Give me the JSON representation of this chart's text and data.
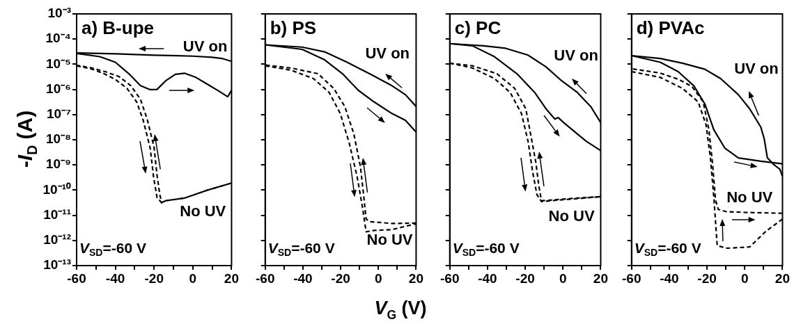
{
  "chart_data": [
    {
      "type": "line",
      "title": "a) B-upe",
      "ylabel": "-I$_{D}$ (A)",
      "log": "y",
      "marker": "none",
      "xlim": [
        -60,
        20
      ],
      "xticks": [
        -60,
        {
          "value": -50,
          "label": null
        },
        -40,
        {
          "value": -30,
          "label": null
        },
        -20,
        {
          "value": -10,
          "label": null
        },
        0,
        {
          "value": 10,
          "label": null
        },
        20
      ],
      "ylim": [
        1e-13,
        0.001
      ],
      "yticks": [
        {
          "value": 1e-13,
          "label": "10⁻¹³"
        },
        {
          "value": 1e-12,
          "label": "10⁻¹²"
        },
        {
          "value": 1e-11,
          "label": "10⁻¹¹"
        },
        {
          "value": 1e-10,
          "label": "10⁻¹⁰"
        },
        {
          "value": 1e-09,
          "label": "10⁻⁹"
        },
        {
          "value": 1e-08,
          "label": "10⁻⁸"
        },
        {
          "value": 1e-07,
          "label": "10⁻⁷"
        },
        {
          "value": 1e-06,
          "label": "10⁻⁶"
        },
        {
          "value": 1e-05,
          "label": "10⁻⁵"
        },
        {
          "value": 0.0001,
          "label": "10⁻⁴"
        },
        {
          "value": 0.001,
          "label": "10⁻³"
        }
      ],
      "series": [
        {
          "color": "#000000",
          "line_style": "solid",
          "x": [
            20,
            15,
            10,
            0,
            -20,
            -40,
            -60
          ],
          "values": [
            1.3e-05,
            1.7e-05,
            1.9e-05,
            2.1e-05,
            2.3e-05,
            2.6e-05,
            2.8e-05
          ]
        },
        {
          "color": "#000000",
          "line_style": "solid",
          "x": [
            -60,
            -48,
            -40,
            -33,
            -27,
            -22,
            -18.5,
            -14,
            -9,
            -4.3,
            1.6,
            7.6,
            13.5,
            18,
            20
          ],
          "values": [
            2.7e-05,
            2e-05,
            1.2e-05,
            4.2e-06,
            1.4e-06,
            9.8e-07,
            1e-06,
            2.2e-06,
            4e-06,
            4.4e-06,
            3e-06,
            1.6e-06,
            8.5e-07,
            5.1e-07,
            9.3e-07
          ]
        },
        {
          "color": "#000000",
          "line_style": "dashed",
          "x": [
            -60,
            -51.7,
            -45.8,
            -40,
            -34,
            -29,
            -25.6,
            -22,
            -20.3,
            -18.5,
            -16.1,
            -14,
            -4.3,
            7.6,
            20
          ],
          "values": [
            8.7e-06,
            6.3e-06,
            4.2e-06,
            2.5e-06,
            1.1e-06,
            3.2e-07,
            5.9e-08,
            4.6e-09,
            3.5e-10,
            5.2e-11,
            3.1e-11,
            3.8e-11,
            4.8e-11,
            1e-10,
            1.9e-10
          ]
        },
        {
          "color": "#000000",
          "line_style": "dashed",
          "x": [
            20,
            7.6,
            -4.3,
            -14,
            -16,
            -17,
            -18.5,
            -20,
            -23.5,
            -27,
            -32,
            -38,
            -45,
            -52,
            -60
          ],
          "values": [
            1.9e-10,
            1e-10,
            4.8e-11,
            3.8e-11,
            3.2e-11,
            6.3e-11,
            4e-10,
            5e-09,
            6.3e-08,
            4e-07,
            1.4e-06,
            3.2e-06,
            5e-06,
            7.1e-06,
            9.1e-06
          ]
        }
      ],
      "annotations": [
        "UV on",
        "No UV",
        "V$_{SD}$=-60 V"
      ]
    },
    {
      "type": "line",
      "title": "b) PS",
      "xlabel": "V$_{G}$ (V)",
      "log": "y",
      "marker": "none",
      "tick_labels": "x",
      "xlim": [
        -60,
        20
      ],
      "xticks": [
        -60,
        {
          "value": -50,
          "label": null
        },
        -40,
        {
          "value": -30,
          "label": null
        },
        -20,
        {
          "value": -10,
          "label": null
        },
        0,
        {
          "value": 10,
          "label": null
        },
        20
      ],
      "ylim": [
        1e-13,
        0.001
      ],
      "yticks": [
        {
          "value": 1e-13,
          "label": null
        },
        {
          "value": 1e-12,
          "label": null
        },
        {
          "value": 1e-11,
          "label": null
        },
        {
          "value": 1e-10,
          "label": null
        },
        {
          "value": 1e-09,
          "label": null
        },
        {
          "value": 1e-08,
          "label": null
        },
        {
          "value": 1e-07,
          "label": null
        },
        {
          "value": 1e-06,
          "label": null
        },
        {
          "value": 1e-05,
          "label": null
        },
        {
          "value": 0.0001,
          "label": null
        },
        {
          "value": 0.001,
          "label": null
        }
      ],
      "series": [
        {
          "color": "#000000",
          "line_style": "solid",
          "x": [
            20,
            14.3,
            7.2,
            -4.7,
            -16.6,
            -28.5,
            -40.4,
            -60
          ],
          "values": [
            2.1e-07,
            6.2e-07,
            1.4e-06,
            4.2e-06,
            1.2e-05,
            3.1e-05,
            4.8e-05,
            5.9e-05
          ]
        },
        {
          "color": "#000000",
          "line_style": "solid",
          "x": [
            -60,
            -40.4,
            -28.5,
            -19,
            -10.7,
            -2.3,
            7.2,
            14.3,
            20
          ],
          "values": [
            5.9e-05,
            3.9e-05,
            1.5e-05,
            4.2e-06,
            9.3e-07,
            3.2e-07,
            1.1e-07,
            5.9e-08,
            2e-08
          ]
        },
        {
          "color": "#000000",
          "line_style": "dashed",
          "x": [
            -60,
            -46.3,
            -34.4,
            -26.1,
            -20.2,
            -15.4,
            -11.3,
            -8.3,
            -6.5,
            -2.3,
            7.2,
            20
          ],
          "values": [
            8.7e-06,
            5.8e-06,
            2.7e-06,
            7.6e-07,
            1.1e-07,
            7.1e-09,
            3.5e-10,
            1.8e-11,
            2.2e-12,
            2.5e-12,
            2.7e-12,
            4.6e-12
          ]
        },
        {
          "color": "#000000",
          "line_style": "dashed",
          "x": [
            20,
            7.2,
            -4.7,
            -6.5,
            -7.7,
            -9.5,
            -13,
            -17.8,
            -23.7,
            -32,
            -46.3,
            -60
          ],
          "values": [
            4.9e-12,
            4.7e-12,
            5.6e-12,
            7.1e-12,
            5.2e-11,
            8.3e-10,
            1.7e-08,
            2.1e-07,
            1.1e-06,
            4.2e-06,
            7.1e-06,
            9.3e-06
          ]
        }
      ],
      "annotations": [
        "UV on",
        "No UV",
        "V$_{SD}$=-60 V"
      ]
    },
    {
      "type": "line",
      "title": "c) PC",
      "log": "y",
      "marker": "none",
      "tick_labels": "x",
      "xlim": [
        -60,
        20
      ],
      "xticks": [
        -60,
        {
          "value": -50,
          "label": null
        },
        -40,
        {
          "value": -30,
          "label": null
        },
        -20,
        {
          "value": -10,
          "label": null
        },
        0,
        {
          "value": 10,
          "label": null
        },
        20
      ],
      "ylim": [
        1e-13,
        0.001
      ],
      "yticks": [
        {
          "value": 1e-13,
          "label": null
        },
        {
          "value": 1e-12,
          "label": null
        },
        {
          "value": 1e-11,
          "label": null
        },
        {
          "value": 1e-10,
          "label": null
        },
        {
          "value": 1e-09,
          "label": null
        },
        {
          "value": 1e-08,
          "label": null
        },
        {
          "value": 1e-07,
          "label": null
        },
        {
          "value": 1e-06,
          "label": null
        },
        {
          "value": 1e-05,
          "label": null
        },
        {
          "value": 0.0001,
          "label": null
        },
        {
          "value": 0.001,
          "label": null
        }
      ],
      "series": [
        {
          "color": "#000000",
          "line_style": "solid",
          "x": [
            20,
            14.7,
            7.6,
            -0.7,
            -9,
            -18.5,
            -30.4,
            -42.2,
            -60
          ],
          "values": [
            4.8e-08,
            2.1e-07,
            7.6e-07,
            2.2e-06,
            7.9e-06,
            2.3e-05,
            4.3e-05,
            5.4e-05,
            6.6e-05
          ]
        },
        {
          "color": "#000000",
          "line_style": "solid",
          "x": [
            -60,
            -48,
            -36.3,
            -24.4,
            -15,
            -9,
            -4.3,
            -2.5,
            0.4,
            7.6,
            12.3,
            20
          ],
          "values": [
            6.6e-05,
            5.4e-05,
            2e-05,
            4.2e-06,
            7.6e-07,
            1.7e-07,
            6.6e-08,
            7.6e-08,
            4.8e-08,
            1.7e-08,
            8.7e-09,
            3.7e-09
          ]
        },
        {
          "color": "#000000",
          "line_style": "dashed",
          "x": [
            -60,
            -48,
            -36.3,
            -28,
            -22,
            -18.5,
            -16.1,
            -13.8,
            -11.4,
            -0.7,
            11,
            20
          ],
          "values": [
            1.1e-05,
            7.1e-06,
            2.7e-06,
            7.6e-07,
            1.1e-07,
            8.7e-09,
            5.5e-10,
            6.6e-11,
            3.5e-11,
            4.1e-11,
            4.8e-11,
            5.5e-11
          ]
        },
        {
          "color": "#000000",
          "line_style": "dashed",
          "x": [
            20,
            5.2,
            -6.7,
            -11.4,
            -12.8,
            -14.4,
            -16.7,
            -19.7,
            -25.6,
            -35,
            -48,
            -60
          ],
          "values": [
            5.5e-11,
            4.7e-11,
            4e-11,
            3.8e-11,
            1.5e-10,
            1.3e-09,
            1.1e-08,
            1.7e-07,
            1.1e-06,
            4.2e-06,
            8.7e-06,
            1.1e-05
          ]
        }
      ],
      "annotations": [
        "UV on",
        "No UV",
        "V$_{SD}$=-60 V"
      ]
    },
    {
      "type": "line",
      "title": "d) PVAc",
      "log": "y",
      "marker": "none",
      "tick_labels": "x",
      "xlim": [
        -60,
        20
      ],
      "xticks": [
        -60,
        {
          "value": -50,
          "label": null
        },
        -40,
        {
          "value": -30,
          "label": null
        },
        -20,
        {
          "value": -10,
          "label": null
        },
        0,
        {
          "value": 10,
          "label": null
        },
        20
      ],
      "ylim": [
        1e-13,
        0.001
      ],
      "yticks": [
        {
          "value": 1e-13,
          "label": null
        },
        {
          "value": 1e-12,
          "label": null
        },
        {
          "value": 1e-11,
          "label": null
        },
        {
          "value": 1e-10,
          "label": null
        },
        {
          "value": 1e-09,
          "label": null
        },
        {
          "value": 1e-08,
          "label": null
        },
        {
          "value": 1e-07,
          "label": null
        },
        {
          "value": 1e-06,
          "label": null
        },
        {
          "value": 1e-05,
          "label": null
        },
        {
          "value": 0.0001,
          "label": null
        },
        {
          "value": 0.001,
          "label": null
        }
      ],
      "series": [
        {
          "color": "#000000",
          "line_style": "solid",
          "x": [
            20,
            18.6,
            15.6,
            12,
            10.3,
            8.5,
            2.6,
            -3.4,
            -12.8,
            -21.1,
            -33,
            -44.8,
            -60
          ],
          "values": [
            3.5e-10,
            6.8e-10,
            1e-09,
            1.9e-09,
            1.1e-08,
            3.2e-08,
            1.7e-07,
            6.2e-07,
            2.7e-06,
            6.3e-06,
            1.1e-05,
            1.7e-05,
            2.2e-05
          ]
        },
        {
          "color": "#000000",
          "line_style": "solid",
          "x": [
            -60,
            -44.8,
            -35.3,
            -27,
            -21.1,
            -16.4,
            -10.5,
            -3.4,
            8.5,
            20
          ],
          "values": [
            2.2e-05,
            1.2e-05,
            5.1e-06,
            1.4e-06,
            2.6e-07,
            2.5e-08,
            4.6e-09,
            1.9e-09,
            1.4e-09,
            1.1e-09
          ]
        },
        {
          "color": "#000000",
          "line_style": "dashed",
          "x": [
            -60,
            -44.8,
            -33,
            -24.7,
            -20.5,
            -18.2,
            -16.4,
            -14.6,
            -9.3,
            2.6,
            10.9,
            20
          ],
          "values": [
            5.1e-06,
            3e-06,
            1.1e-06,
            3.2e-07,
            3.9e-08,
            1.9e-09,
            5.2e-11,
            6.2e-13,
            4.9e-13,
            5.5e-13,
            2.2e-12,
            7.1e-12
          ]
        },
        {
          "color": "#000000",
          "line_style": "dashed",
          "x": [
            20,
            0,
            -10,
            -14,
            -15.5,
            -17,
            -19,
            -22,
            -28,
            -35,
            -45,
            -60
          ],
          "values": [
            1.2e-11,
            1.3e-11,
            1.4e-11,
            1.7e-11,
            4e-11,
            1e-09,
            2.5e-08,
            3.2e-07,
            1.3e-06,
            2.5e-06,
            4.5e-06,
            6.6e-06
          ]
        }
      ],
      "annotations": [
        "UV on",
        "No UV",
        "V$_{SD}$=-60 V"
      ]
    }
  ]
}
